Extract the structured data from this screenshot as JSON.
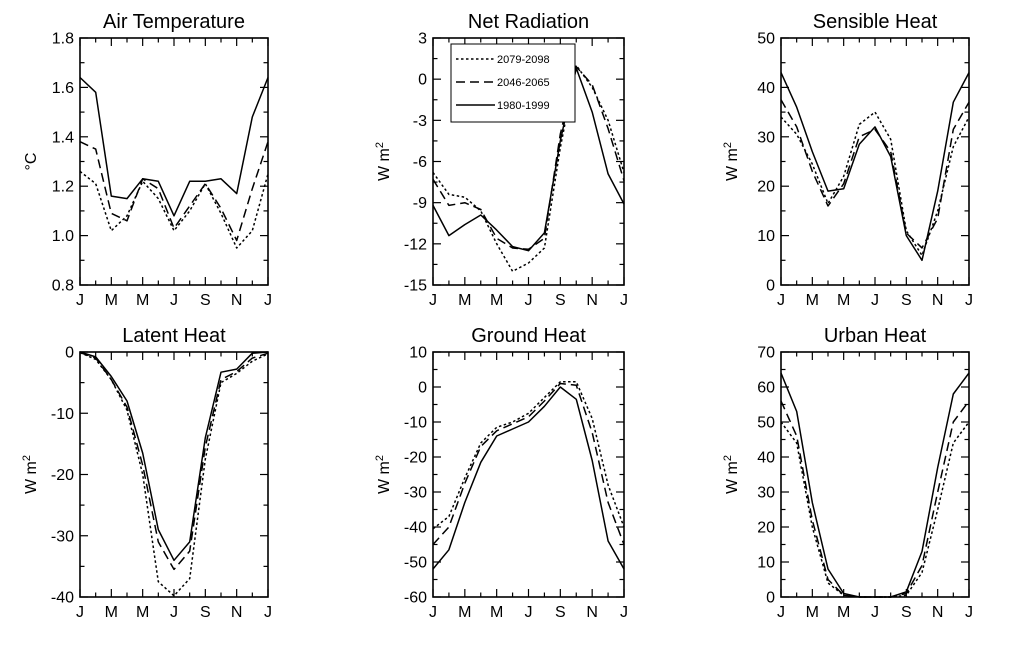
{
  "figure": {
    "month_tick_labels": [
      "J",
      "M",
      "M",
      "J",
      "S",
      "N",
      "J"
    ],
    "series_styles": {
      "2079-2098": "dotted",
      "2046-2065": "dashed",
      "1980-1999": "solid"
    },
    "line_color": "#000000"
  },
  "chart_data": [
    {
      "type": "line",
      "title": "Air Temperature",
      "ylabel": "°C",
      "ylim": [
        0.8,
        1.8
      ],
      "yticks": [
        0.8,
        1.0,
        1.2,
        1.4,
        1.6,
        1.8
      ],
      "ytick_labels": [
        "0.8",
        "1.0",
        "1.2",
        "1.4",
        "1.6",
        "1.8"
      ],
      "x": [
        1,
        2,
        3,
        4,
        5,
        6,
        7,
        8,
        9,
        10,
        11,
        12,
        13
      ],
      "series": [
        {
          "name": "2079-2098",
          "style": "dotted",
          "values": [
            1.26,
            1.21,
            1.02,
            1.08,
            1.22,
            1.15,
            1.02,
            1.1,
            1.21,
            1.09,
            0.95,
            1.02,
            1.25
          ]
        },
        {
          "name": "2046-2065",
          "style": "dashed",
          "values": [
            1.38,
            1.35,
            1.09,
            1.06,
            1.23,
            1.19,
            1.03,
            1.12,
            1.21,
            1.11,
            0.98,
            1.19,
            1.38
          ]
        },
        {
          "name": "1980-1999",
          "style": "solid",
          "values": [
            1.64,
            1.58,
            1.16,
            1.15,
            1.23,
            1.22,
            1.08,
            1.22,
            1.22,
            1.23,
            1.17,
            1.48,
            1.64
          ]
        }
      ]
    },
    {
      "type": "line",
      "title": "Net Radiation",
      "ylabel": "W m",
      "ylabel_sup": "2",
      "ylim": [
        -15,
        3
      ],
      "yticks": [
        -15,
        -12,
        -9,
        -6,
        -3,
        0,
        3
      ],
      "ytick_labels": [
        "-15",
        "-12",
        "-9",
        "-6",
        "-3",
        "0",
        "3"
      ],
      "x": [
        1,
        2,
        3,
        4,
        5,
        6,
        7,
        8,
        9,
        10,
        11,
        12,
        13
      ],
      "legend": {
        "position": "top-left",
        "entries": [
          "2079-2098",
          "2046-2065",
          "1980-1999"
        ]
      },
      "series": [
        {
          "name": "2079-2098",
          "style": "dotted",
          "values": [
            -6.8,
            -8.4,
            -8.6,
            -9.6,
            -12.0,
            -14.0,
            -13.4,
            -12.3,
            -5.0,
            1.0,
            -0.6,
            -3.0,
            -6.8
          ]
        },
        {
          "name": "2046-2065",
          "style": "dashed",
          "values": [
            -7.3,
            -9.2,
            -9.0,
            -9.5,
            -11.6,
            -12.3,
            -12.4,
            -11.6,
            -4.0,
            0.9,
            -0.4,
            -3.6,
            -7.4
          ]
        },
        {
          "name": "1980-1999",
          "style": "solid",
          "values": [
            -9.2,
            -11.4,
            -10.6,
            -9.9,
            -11.0,
            -12.2,
            -12.5,
            -11.2,
            -4.5,
            0.8,
            -2.4,
            -6.9,
            -9.1
          ]
        }
      ]
    },
    {
      "type": "line",
      "title": "Sensible Heat",
      "ylabel": "W m",
      "ylabel_sup": "2",
      "ylim": [
        0,
        50
      ],
      "yticks": [
        0,
        10,
        20,
        30,
        40,
        50
      ],
      "ytick_labels": [
        "0",
        "10",
        "20",
        "30",
        "40",
        "50"
      ],
      "x": [
        1,
        2,
        3,
        4,
        5,
        6,
        7,
        8,
        9,
        10,
        11,
        12,
        13
      ],
      "series": [
        {
          "name": "2079-2098",
          "style": "dotted",
          "values": [
            34.0,
            30.5,
            24.5,
            16.5,
            22.0,
            32.5,
            35.0,
            29.5,
            11.0,
            6.0,
            15.0,
            28.0,
            34.0
          ]
        },
        {
          "name": "2046-2065",
          "style": "dashed",
          "values": [
            37.5,
            32.0,
            23.0,
            16.0,
            20.5,
            30.0,
            31.5,
            27.0,
            10.5,
            7.5,
            13.5,
            31.5,
            37.0
          ]
        },
        {
          "name": "1980-1999",
          "style": "solid",
          "values": [
            43.0,
            36.0,
            27.0,
            19.0,
            19.5,
            28.5,
            32.0,
            26.0,
            10.0,
            5.0,
            19.0,
            37.0,
            43.0
          ]
        }
      ]
    },
    {
      "type": "line",
      "title": "Latent Heat",
      "ylabel": "W m",
      "ylabel_sup": "2",
      "ylim": [
        -40,
        0
      ],
      "yticks": [
        -40,
        -30,
        -20,
        -10,
        0
      ],
      "ytick_labels": [
        "-40",
        "-30",
        "-20",
        "-10",
        "0"
      ],
      "x": [
        1,
        2,
        3,
        4,
        5,
        6,
        7,
        8,
        9,
        10,
        11,
        12,
        13
      ],
      "series": [
        {
          "name": "2079-2098",
          "style": "dotted",
          "values": [
            -0.1,
            -1.2,
            -4.5,
            -9.5,
            -20.0,
            -37.5,
            -39.8,
            -37.0,
            -17.5,
            -5.0,
            -3.5,
            -1.5,
            -0.3
          ]
        },
        {
          "name": "2046-2065",
          "style": "dashed",
          "values": [
            -0.1,
            -1.0,
            -4.5,
            -9.0,
            -18.5,
            -31.0,
            -35.5,
            -32.5,
            -15.5,
            -4.5,
            -3.2,
            -1.0,
            -0.2
          ]
        },
        {
          "name": "1980-1999",
          "style": "solid",
          "values": [
            0.0,
            -0.8,
            -4.0,
            -8.0,
            -16.5,
            -29.0,
            -34.0,
            -31.0,
            -14.0,
            -3.3,
            -2.8,
            -0.2,
            0.0
          ]
        }
      ]
    },
    {
      "type": "line",
      "title": "Ground Heat",
      "ylabel": "W m",
      "ylabel_sup": "2",
      "ylim": [
        -60,
        10
      ],
      "yticks": [
        -60,
        -50,
        -40,
        -30,
        -20,
        -10,
        0,
        10
      ],
      "ytick_labels": [
        "-60",
        "-50",
        "-40",
        "-30",
        "-20",
        "-10",
        "0",
        "10"
      ],
      "x": [
        1,
        2,
        3,
        4,
        5,
        6,
        7,
        8,
        9,
        10,
        11,
        12,
        13
      ],
      "series": [
        {
          "name": "2079-2098",
          "style": "dotted",
          "values": [
            -40.5,
            -37.0,
            -26.0,
            -16.0,
            -11.5,
            -10.0,
            -7.5,
            -3.0,
            1.5,
            1.5,
            -9.0,
            -28.0,
            -40.0
          ]
        },
        {
          "name": "2046-2065",
          "style": "dashed",
          "values": [
            -45.0,
            -40.0,
            -27.5,
            -17.0,
            -12.5,
            -10.5,
            -8.5,
            -4.0,
            1.0,
            0.5,
            -13.0,
            -33.0,
            -45.0
          ]
        },
        {
          "name": "1980-1999",
          "style": "solid",
          "values": [
            -52.0,
            -46.5,
            -33.0,
            -21.5,
            -14.0,
            -12.0,
            -10.0,
            -5.5,
            0.0,
            -3.5,
            -21.0,
            -44.0,
            -52.0
          ]
        }
      ]
    },
    {
      "type": "line",
      "title": "Urban Heat",
      "ylabel": "W m",
      "ylabel_sup": "2",
      "ylim": [
        0,
        70
      ],
      "yticks": [
        0,
        10,
        20,
        30,
        40,
        50,
        60,
        70
      ],
      "ytick_labels": [
        "0",
        "10",
        "20",
        "30",
        "40",
        "50",
        "60",
        "70"
      ],
      "x": [
        1,
        2,
        3,
        4,
        5,
        6,
        7,
        8,
        9,
        10,
        11,
        12,
        13
      ],
      "series": [
        {
          "name": "2079-2098",
          "style": "dotted",
          "values": [
            50.0,
            44.0,
            20.0,
            4.0,
            0.5,
            0.0,
            0.0,
            0.0,
            0.5,
            7.0,
            25.0,
            44.0,
            50.0
          ]
        },
        {
          "name": "2046-2065",
          "style": "dashed",
          "values": [
            56.0,
            46.0,
            22.0,
            5.0,
            0.5,
            0.0,
            0.0,
            0.0,
            1.0,
            9.0,
            30.0,
            50.0,
            56.0
          ]
        },
        {
          "name": "1980-1999",
          "style": "solid",
          "values": [
            64.0,
            53.0,
            27.0,
            8.0,
            1.0,
            0.0,
            0.0,
            0.0,
            1.5,
            13.0,
            37.0,
            58.0,
            64.0
          ]
        }
      ]
    }
  ]
}
